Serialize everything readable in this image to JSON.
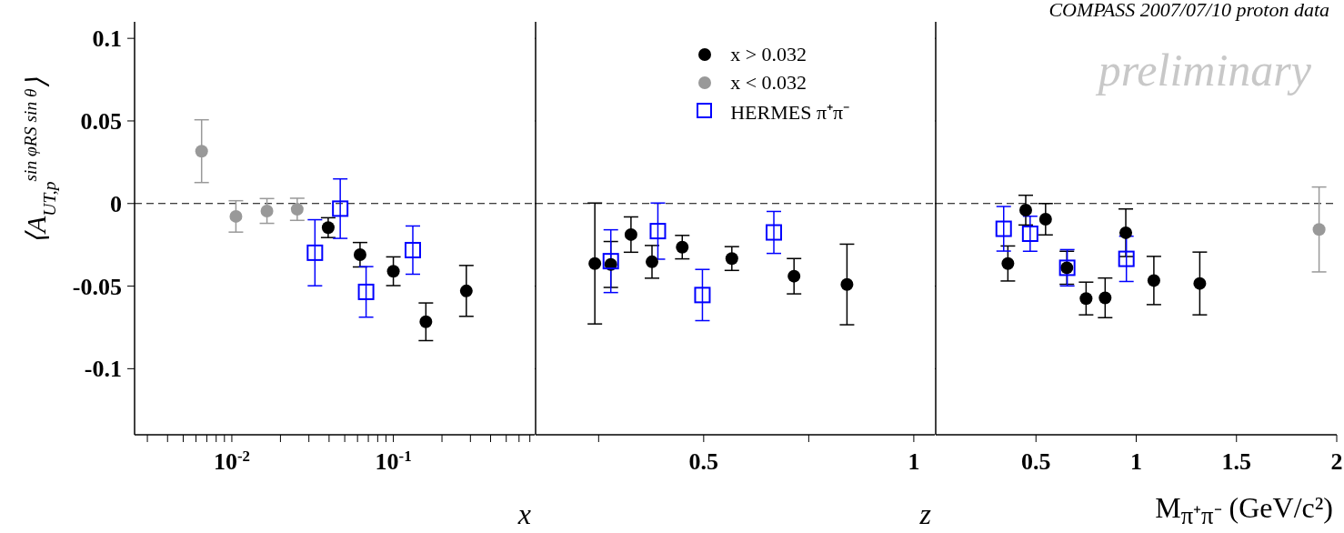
{
  "chart_data": [
    {
      "type": "scatter",
      "xlabel": "x",
      "ylabel": "⟨A$_{UT,p}$$^{sin φRS sin θ}$⟩",
      "log": "x",
      "xlim": [
        0.0025,
        0.75
      ],
      "ylim": [
        -0.14,
        0.11
      ],
      "xticks": [
        {
          "value": 0.003,
          "label": null
        },
        {
          "value": 0.004,
          "label": null
        },
        {
          "value": 0.005,
          "label": null
        },
        {
          "value": 0.006,
          "label": null
        },
        {
          "value": 0.007,
          "label": null
        },
        {
          "value": 0.008,
          "label": null
        },
        {
          "value": 0.009,
          "label": null
        },
        {
          "value": 0.01,
          "label": "10$^{-2}$"
        },
        {
          "value": 0.02,
          "label": null
        },
        {
          "value": 0.03,
          "label": null
        },
        {
          "value": 0.04,
          "label": null
        },
        {
          "value": 0.05,
          "label": null
        },
        {
          "value": 0.06,
          "label": null
        },
        {
          "value": 0.07,
          "label": null
        },
        {
          "value": 0.08,
          "label": null
        },
        {
          "value": 0.09,
          "label": null
        },
        {
          "value": 0.1,
          "label": "10$^{-1}$"
        },
        {
          "value": 0.2,
          "label": null
        },
        {
          "value": 0.3,
          "label": null
        },
        {
          "value": 0.4,
          "label": null
        },
        {
          "value": 0.5,
          "label": null
        },
        {
          "value": 0.6,
          "label": null
        },
        {
          "value": 0.7,
          "label": null
        }
      ],
      "yticks": [
        -0.1,
        -0.05,
        0,
        0.05,
        0.1
      ],
      "ref_lines": [
        {
          "axis": "y",
          "value": 0,
          "line_style": "dashed"
        }
      ],
      "series": [
        {
          "color": "#000000",
          "marker": "circle",
          "x": [
            0.0395,
            0.0622,
            0.1,
            0.159,
            0.283
          ],
          "values": [
            -0.0146,
            -0.031,
            -0.041,
            -0.0716,
            -0.0529
          ],
          "errors": [
            0.006,
            0.0074,
            0.0087,
            0.0114,
            0.0154
          ]
        },
        {
          "color": "#999999",
          "marker": "circle",
          "x": [
            0.0065,
            0.0106,
            0.0165,
            0.0254
          ],
          "values": [
            0.0317,
            -0.0078,
            -0.0045,
            -0.0035
          ],
          "errors": [
            0.019,
            0.0095,
            0.0075,
            0.0067
          ]
        },
        {
          "color": "#0000ff",
          "marker": "square",
          "x": [
            0.0327,
            0.0469,
            0.0678,
            0.132
          ],
          "values": [
            -0.0298,
            -0.0031,
            -0.0535,
            -0.0282
          ],
          "errors": [
            0.02,
            0.018,
            0.0153,
            0.0146
          ]
        }
      ]
    },
    {
      "type": "scatter",
      "xlabel": "z",
      "xlim": [
        0.1,
        1.05
      ],
      "ylim": [
        -0.14,
        0.11
      ],
      "tick_labels": "x",
      "legend": "top",
      "xticks": [
        {
          "value": 0.25,
          "label": null
        },
        0.5,
        {
          "value": 0.75,
          "label": null
        },
        1
      ],
      "yticks": [
        -0.1,
        -0.05,
        0,
        0.05,
        0.1
      ],
      "ref_lines": [
        {
          "axis": "y",
          "value": 0,
          "line_style": "dashed"
        }
      ],
      "series": [
        {
          "name": "x > 0.032",
          "color": "#000000",
          "marker": "circle",
          "x": [
            0.241,
            0.279,
            0.327,
            0.377,
            0.449,
            0.567,
            0.715,
            0.841
          ],
          "values": [
            -0.0363,
            -0.0369,
            -0.0188,
            -0.0353,
            -0.0264,
            -0.0333,
            -0.044,
            -0.049
          ],
          "errors": [
            0.0366,
            0.0139,
            0.0107,
            0.0099,
            0.0071,
            0.0072,
            0.0107,
            0.0244
          ]
        },
        {
          "name": "x < 0.032",
          "color": "#999999",
          "marker": "circle"
        },
        {
          "name": "HERMES π⁺π⁻",
          "color": "#0000ff",
          "marker": "square",
          "x": [
            0.279,
            0.391,
            0.497,
            0.667
          ],
          "values": [
            -0.0349,
            -0.0167,
            -0.0554,
            -0.0175
          ],
          "errors": [
            0.019,
            0.017,
            0.0155,
            0.0127
          ]
        }
      ]
    },
    {
      "type": "scatter",
      "title": "COMPASS 2007/07/10 proton data",
      "annotations": [
        "preliminary"
      ],
      "xlabel": "M$_{π⁺π⁻}$ (GeV/c²)",
      "xlim": [
        0,
        2
      ],
      "ylim": [
        -0.14,
        0.11
      ],
      "tick_labels": "x",
      "xticks": [
        0.5,
        1,
        1.5,
        2
      ],
      "yticks": [
        -0.1,
        -0.05,
        0,
        0.05,
        0.1
      ],
      "ref_lines": [
        {
          "axis": "y",
          "value": 0,
          "line_style": "dashed"
        }
      ],
      "series": [
        {
          "color": "#000000",
          "marker": "circle",
          "x": [
            0.36,
            0.449,
            0.548,
            0.654,
            0.75,
            0.845,
            0.948,
            1.088,
            1.317
          ],
          "values": [
            -0.0363,
            -0.004,
            -0.0095,
            -0.0389,
            -0.0575,
            -0.0571,
            -0.0177,
            -0.0466,
            -0.0484
          ],
          "errors": [
            0.0106,
            0.009,
            0.0095,
            0.01,
            0.0099,
            0.012,
            0.0144,
            0.0146,
            0.019
          ]
        },
        {
          "color": "#999999",
          "marker": "circle",
          "x": [
            1.912
          ],
          "values": [
            -0.0157
          ],
          "errors": [
            0.0257
          ]
        },
        {
          "color": "#0000ff",
          "marker": "square",
          "x": [
            0.339,
            0.471,
            0.656,
            0.951
          ],
          "values": [
            -0.0153,
            -0.0183,
            -0.0389,
            -0.0335
          ],
          "errors": [
            0.0135,
            0.0106,
            0.011,
            0.0137
          ]
        }
      ]
    }
  ]
}
